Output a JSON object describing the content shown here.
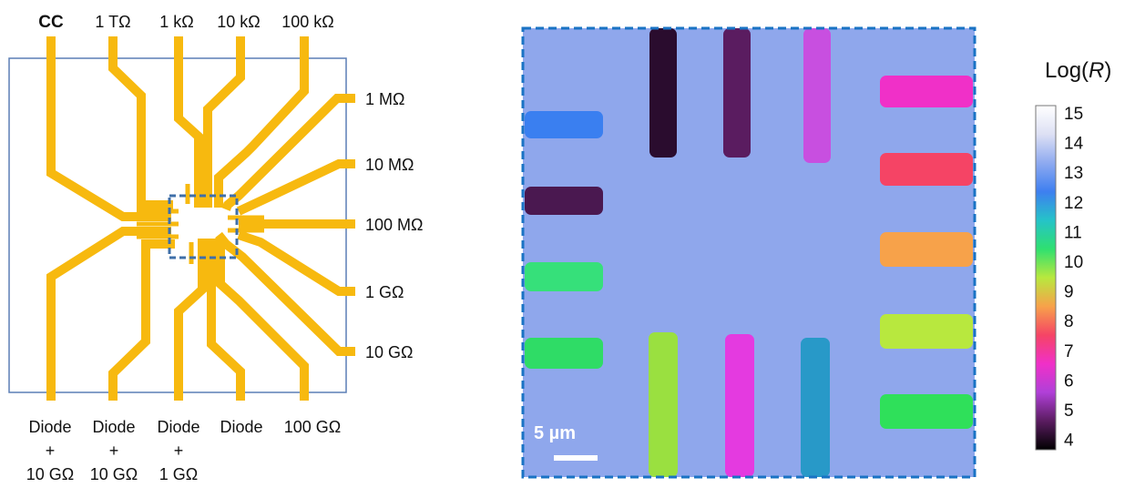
{
  "schematic": {
    "top_labels": [
      "CC",
      "1 TΩ",
      "1 kΩ",
      "10 kΩ",
      "100 kΩ"
    ],
    "right_labels": [
      "1 MΩ",
      "10 MΩ",
      "100 MΩ",
      "1 GΩ",
      "10 GΩ"
    ],
    "bottom_labels": [
      {
        "line1": "Diode",
        "line2": "+",
        "line3": "10 GΩ"
      },
      {
        "line1": "Diode",
        "line2": "+",
        "line3": "10 GΩ"
      },
      {
        "line1": "Diode",
        "line2": "+",
        "line3": "1 GΩ"
      },
      {
        "line1": "Diode",
        "line2": "",
        "line3": ""
      },
      {
        "line1": "100 GΩ",
        "line2": "",
        "line3": ""
      }
    ],
    "trace_color": "#f7b90f",
    "frame_color": "#5b7fb5",
    "dashed_box_color": "#3f6fa8"
  },
  "micrograph": {
    "background_color": "#8fa7ec",
    "border_color": "#1a73c4",
    "scale_bar_label": "5 µm",
    "electrodes": {
      "top": [
        {
          "log_r": 4.0,
          "color": "#2a0c2e"
        },
        {
          "log_r": 4.7,
          "color": "#5a1c60"
        },
        {
          "log_r": 5.3,
          "color": "#c84fe0"
        }
      ],
      "left": [
        {
          "log_r": 12.3,
          "color": "#3a7ff0"
        },
        {
          "log_r": 4.3,
          "color": "#4a1850"
        },
        {
          "log_r": 10.7,
          "color": "#36e07a"
        },
        {
          "log_r": 10.9,
          "color": "#2fdc66"
        }
      ],
      "right": [
        {
          "log_r": 6.0,
          "color": "#f030c8"
        },
        {
          "log_r": 6.8,
          "color": "#f54465"
        },
        {
          "log_r": 8.6,
          "color": "#f7a24a"
        },
        {
          "log_r": 9.5,
          "color": "#b8e83e"
        },
        {
          "log_r": 10.8,
          "color": "#2fe05a"
        }
      ],
      "bottom": [
        {
          "log_r": 9.9,
          "color": "#9ae040"
        },
        {
          "log_r": 5.6,
          "color": "#e43ae0"
        },
        {
          "log_r": 11.8,
          "color": "#2899c8"
        }
      ]
    }
  },
  "colorbar": {
    "title_prefix": "Log(",
    "title_var": "R",
    "title_suffix": ")",
    "ticks": [
      "15",
      "14",
      "13",
      "12",
      "11",
      "10",
      "9",
      "8",
      "7",
      "6",
      "5",
      "4"
    ],
    "range": [
      4,
      15
    ],
    "stops": [
      "#ffffff",
      "#dde0f4",
      "#8eaaf0",
      "#3e7ff0",
      "#25c3c8",
      "#2fe070",
      "#b8e83e",
      "#f7a24a",
      "#f54465",
      "#f030c8",
      "#b040d8",
      "#5a1c60",
      "#000000"
    ]
  }
}
